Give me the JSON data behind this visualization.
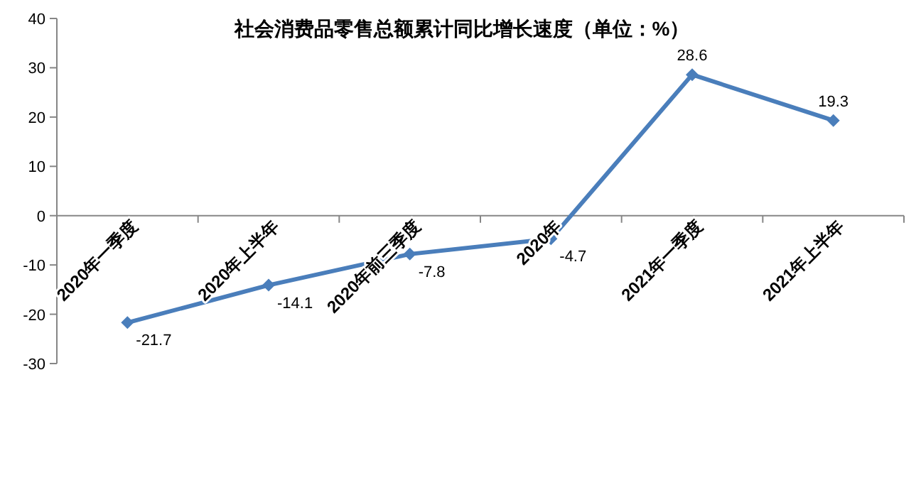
{
  "chart_data": {
    "type": "line",
    "title": "社会消费品零售总额累计同比增长速度（单位：%）",
    "categories": [
      "2020年一季度",
      "2020年上半年",
      "2020年前三季度",
      "2020年",
      "2021年一季度",
      "2021年上半年"
    ],
    "series": [
      {
        "color": "#4a7ebb",
        "values": [
          -21.7,
          -14.1,
          -7.8,
          -4.7,
          28.6,
          19.3
        ]
      }
    ],
    "ylim": [
      -30,
      40
    ],
    "yticks": [
      -30,
      -20,
      -10,
      0,
      10,
      20,
      30,
      40
    ],
    "marker": "diamond",
    "line_style": "solid",
    "data_labels": true,
    "grid": false
  }
}
